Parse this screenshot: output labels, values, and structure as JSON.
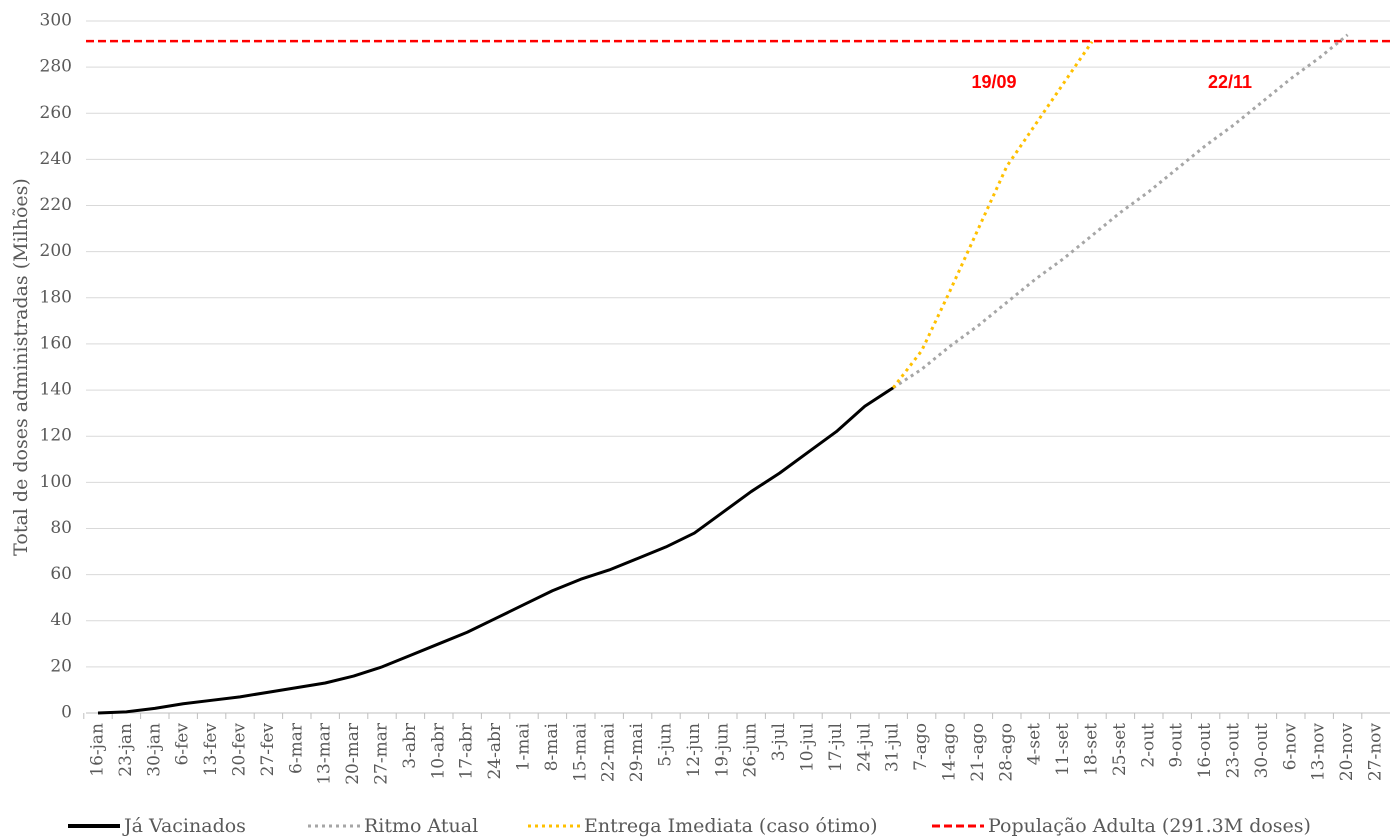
{
  "chart_data": {
    "type": "line",
    "y_label": "Total de doses administradas (Milhões)",
    "categories": [
      "16-jan",
      "23-jan",
      "30-jan",
      "6-fev",
      "13-fev",
      "20-fev",
      "27-fev",
      "6-mar",
      "13-mar",
      "20-mar",
      "27-mar",
      "3-abr",
      "10-abr",
      "17-abr",
      "24-abr",
      "1-mai",
      "8-mai",
      "15-mai",
      "22-mai",
      "29-mai",
      "5-jun",
      "12-jun",
      "19-jun",
      "26-jun",
      "3-jul",
      "10-jul",
      "17-jul",
      "24-jul",
      "31-jul",
      "7-ago",
      "14-ago",
      "21-ago",
      "28-ago",
      "4-set",
      "11-set",
      "18-set",
      "25-set",
      "2-out",
      "9-out",
      "16-out",
      "23-out",
      "30-out",
      "6-nov",
      "13-nov",
      "20-nov",
      "27-nov"
    ],
    "series": [
      {
        "name": "Já Vacinados",
        "color": "#000000",
        "style": "solid",
        "values": [
          0,
          0.5,
          2,
          4,
          5.5,
          7,
          9,
          11,
          13,
          16,
          20,
          25,
          30,
          35,
          41,
          47,
          53,
          58,
          62,
          67,
          72,
          78,
          87,
          96,
          104,
          113,
          122,
          133,
          141,
          null,
          null,
          null,
          null,
          null,
          null,
          null,
          null,
          null,
          null,
          null,
          null,
          null,
          null,
          null,
          null,
          null
        ]
      },
      {
        "name": "Ritmo Atual",
        "color": "#a6a6a6",
        "style": "dotted",
        "values": [
          null,
          null,
          null,
          null,
          null,
          null,
          null,
          null,
          null,
          null,
          null,
          null,
          null,
          null,
          null,
          null,
          null,
          null,
          null,
          null,
          null,
          null,
          null,
          null,
          null,
          null,
          null,
          null,
          141,
          149,
          159,
          168,
          178,
          188,
          197,
          207,
          217,
          226,
          236,
          246,
          255,
          265,
          275,
          284,
          294,
          null
        ]
      },
      {
        "name": "Entrega Imediata (caso ótimo)",
        "color": "#ffc000",
        "style": "dotted",
        "values": [
          null,
          null,
          null,
          null,
          null,
          null,
          null,
          null,
          null,
          null,
          null,
          null,
          null,
          null,
          null,
          null,
          null,
          null,
          null,
          null,
          null,
          null,
          null,
          null,
          null,
          null,
          null,
          null,
          141,
          157,
          183,
          210,
          237,
          255,
          273,
          291,
          null,
          null,
          null,
          null,
          null,
          null,
          null,
          null,
          null,
          null
        ]
      }
    ],
    "reference_line": {
      "name": "População Adulta (291.3M doses)",
      "color": "#ff0000",
      "style": "dashed",
      "value": 291.3
    },
    "annotations": [
      "19/09",
      "22/11"
    ],
    "ylim": [
      0,
      300
    ],
    "yticks": [
      0,
      20,
      40,
      60,
      80,
      100,
      120,
      140,
      160,
      180,
      200,
      220,
      240,
      260,
      280,
      300
    ],
    "grid": true
  }
}
